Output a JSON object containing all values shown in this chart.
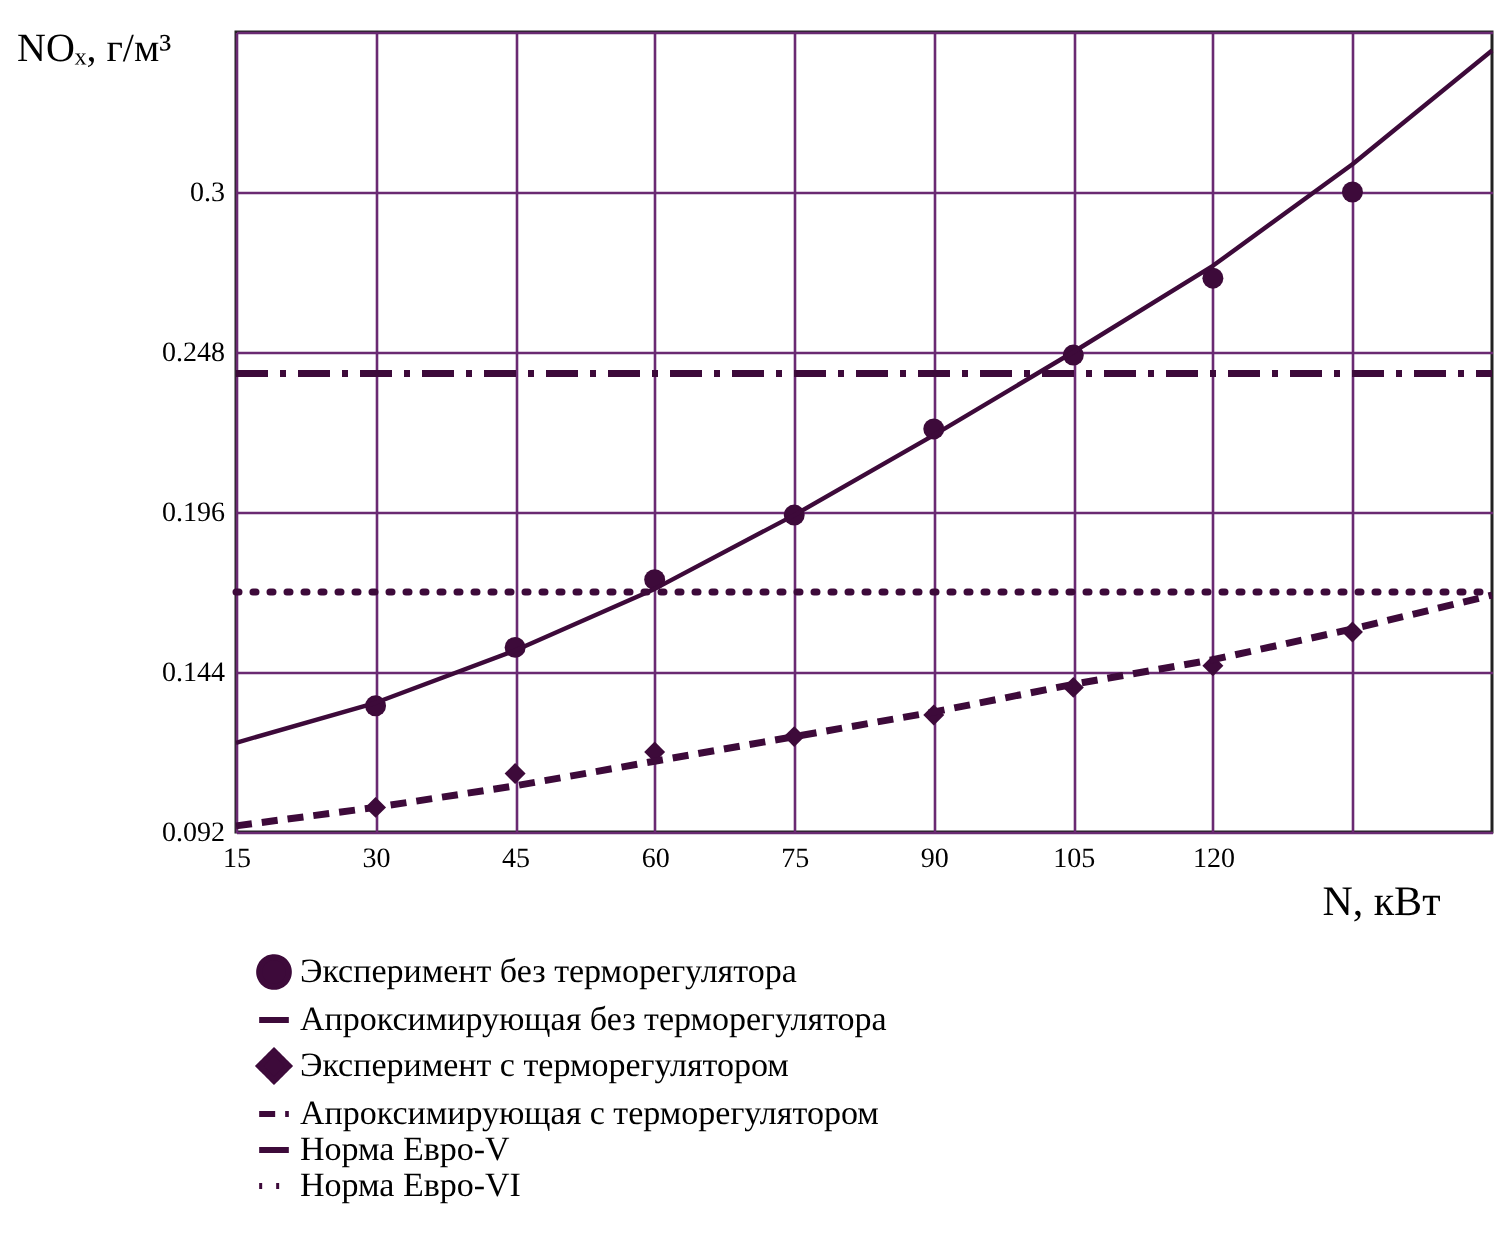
{
  "chart_data": {
    "type": "line",
    "ylabel": "NOₓ, г/м³",
    "xlabel": "N, кВт",
    "xlim": [
      15,
      150
    ],
    "xticks": [
      15,
      30,
      45,
      60,
      75,
      90,
      105,
      120,
      {
        "value": 135,
        "label": null
      }
    ],
    "ylim": [
      0.092,
      0.352
    ],
    "yticks": [
      0.092,
      0.144,
      0.196,
      0.248,
      0.3,
      {
        "value": 0.352,
        "label": null
      }
    ],
    "grid": true,
    "legend": "bottom",
    "series": [
      {
        "name": "Эксперимент без терморегулятора",
        "type": "scatter",
        "marker": "circle",
        "color": "#3d0a3a",
        "x": [
          30,
          45,
          60,
          75,
          90,
          105,
          120,
          135
        ],
        "values": [
          0.133,
          0.152,
          0.174,
          0.195,
          0.223,
          0.247,
          0.272,
          0.3
        ]
      },
      {
        "name": "Апроксимирующая без терморегулятора",
        "type": "line",
        "line_style": "solid",
        "color": "#3d0a3a",
        "x": [
          15,
          30,
          45,
          60,
          75,
          90,
          105,
          120,
          135,
          150
        ],
        "values": [
          0.121,
          0.134,
          0.151,
          0.171,
          0.195,
          0.221,
          0.248,
          0.276,
          0.309,
          0.346
        ]
      },
      {
        "name": "Эксперимент с терморегулятором",
        "type": "scatter",
        "marker": "diamond",
        "color": "#3d0a3a",
        "x": [
          30,
          45,
          60,
          75,
          90,
          105,
          120,
          135
        ],
        "values": [
          0.1,
          0.111,
          0.118,
          0.123,
          0.13,
          0.139,
          0.146,
          0.157
        ]
      },
      {
        "name": "Апроксимирующая с терморегулятором",
        "type": "line",
        "line_style": "dashed",
        "color": "#3d0a3a",
        "x": [
          15,
          30,
          45,
          60,
          75,
          90,
          105,
          120,
          135,
          150
        ],
        "values": [
          0.094,
          0.1,
          0.107,
          0.115,
          0.123,
          0.131,
          0.14,
          0.148,
          0.158,
          0.169
        ]
      },
      {
        "name": "Норма Евро-V",
        "type": "line",
        "line_style": "dashdot",
        "color": "#3d0a3a",
        "x": [
          15,
          150
        ],
        "values": [
          0.241,
          0.241
        ]
      },
      {
        "name": "Норма Евро-VI",
        "type": "line",
        "line_style": "dotted",
        "color": "#3d0a3a",
        "x": [
          15,
          150
        ],
        "values": [
          0.17,
          0.17
        ]
      }
    ]
  }
}
